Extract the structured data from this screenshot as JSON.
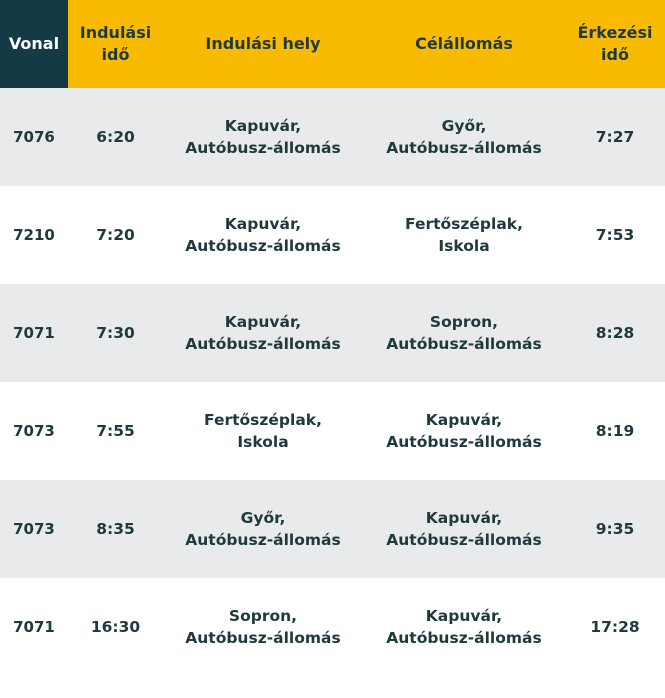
{
  "colors": {
    "header_bg": "#f9ba02",
    "header_first_col_bg": "#133a45",
    "row_shade": "#e8eaeb",
    "text": "#1f3a3d"
  },
  "header": {
    "vonal": "Vonal",
    "indulasi_ido": "Indulási\nidő",
    "indulasi_hely": "Indulási hely",
    "celallomas": "Célállomás",
    "erkezesi_ido": "Érkezési\nidő"
  },
  "rows": [
    {
      "vonal": "7076",
      "indulas": "6:20",
      "hely": "Kapuvár,\nAutóbusz-állomás",
      "cel": "Győr,\nAutóbusz-állomás",
      "erkezes": "7:27"
    },
    {
      "vonal": "7210",
      "indulas": "7:20",
      "hely": "Kapuvár,\nAutóbusz-állomás",
      "cel": "Fertőszéplak,\nIskola",
      "erkezes": "7:53"
    },
    {
      "vonal": "7071",
      "indulas": "7:30",
      "hely": "Kapuvár,\nAutóbusz-állomás",
      "cel": "Sopron,\nAutóbusz-állomás",
      "erkezes": "8:28"
    },
    {
      "vonal": "7073",
      "indulas": "7:55",
      "hely": "Fertőszéplak,\nIskola",
      "cel": "Kapuvár,\nAutóbusz-állomás",
      "erkezes": "8:19"
    },
    {
      "vonal": "7073",
      "indulas": "8:35",
      "hely": "Győr,\nAutóbusz-állomás",
      "cel": "Kapuvár,\nAutóbusz-állomás",
      "erkezes": "9:35"
    },
    {
      "vonal": "7071",
      "indulas": "16:30",
      "hely": "Sopron,\nAutóbusz-állomás",
      "cel": "Kapuvár,\nAutóbusz-állomás",
      "erkezes": "17:28"
    }
  ]
}
